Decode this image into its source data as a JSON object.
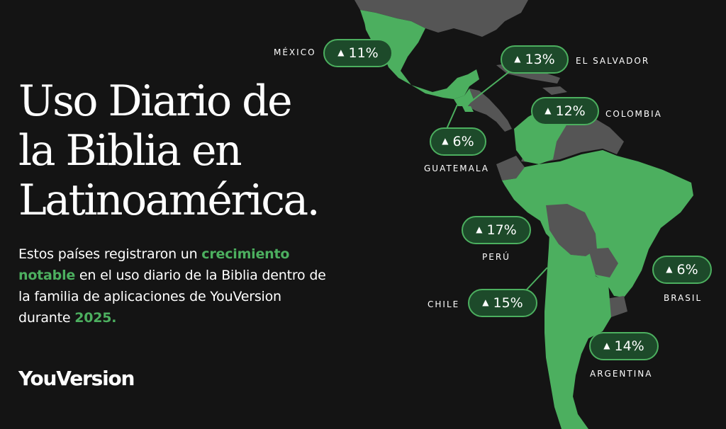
{
  "headline": {
    "line1": "Uso Diario de",
    "line2": "la Biblia en",
    "line3": "Latinoamérica."
  },
  "description": {
    "text1": "Estos países registraron un ",
    "highlight1": "crecimiento notable",
    "text2": " en el uso diario de la Biblia dentro de la familia de aplicaciones de YouVersion durante ",
    "highlight2": "2025."
  },
  "brand": "YouVersion",
  "colors": {
    "background": "#141414",
    "highlight": "#4caf5f",
    "land_growth": "#4caf5f",
    "land_other": "#555555",
    "pill_fill": "#1d4a2a"
  },
  "trend_icon": "up-triangle-icon",
  "countries": [
    {
      "name": "MÉXICO",
      "value": "11%"
    },
    {
      "name": "EL SALVADOR",
      "value": "13%"
    },
    {
      "name": "GUATEMALA",
      "value": "6%"
    },
    {
      "name": "COLOMBIA",
      "value": "12%"
    },
    {
      "name": "PERÚ",
      "value": "17%"
    },
    {
      "name": "BRASIL",
      "value": "6%"
    },
    {
      "name": "CHILE",
      "value": "15%"
    },
    {
      "name": "ARGENTINA",
      "value": "14%"
    }
  ]
}
